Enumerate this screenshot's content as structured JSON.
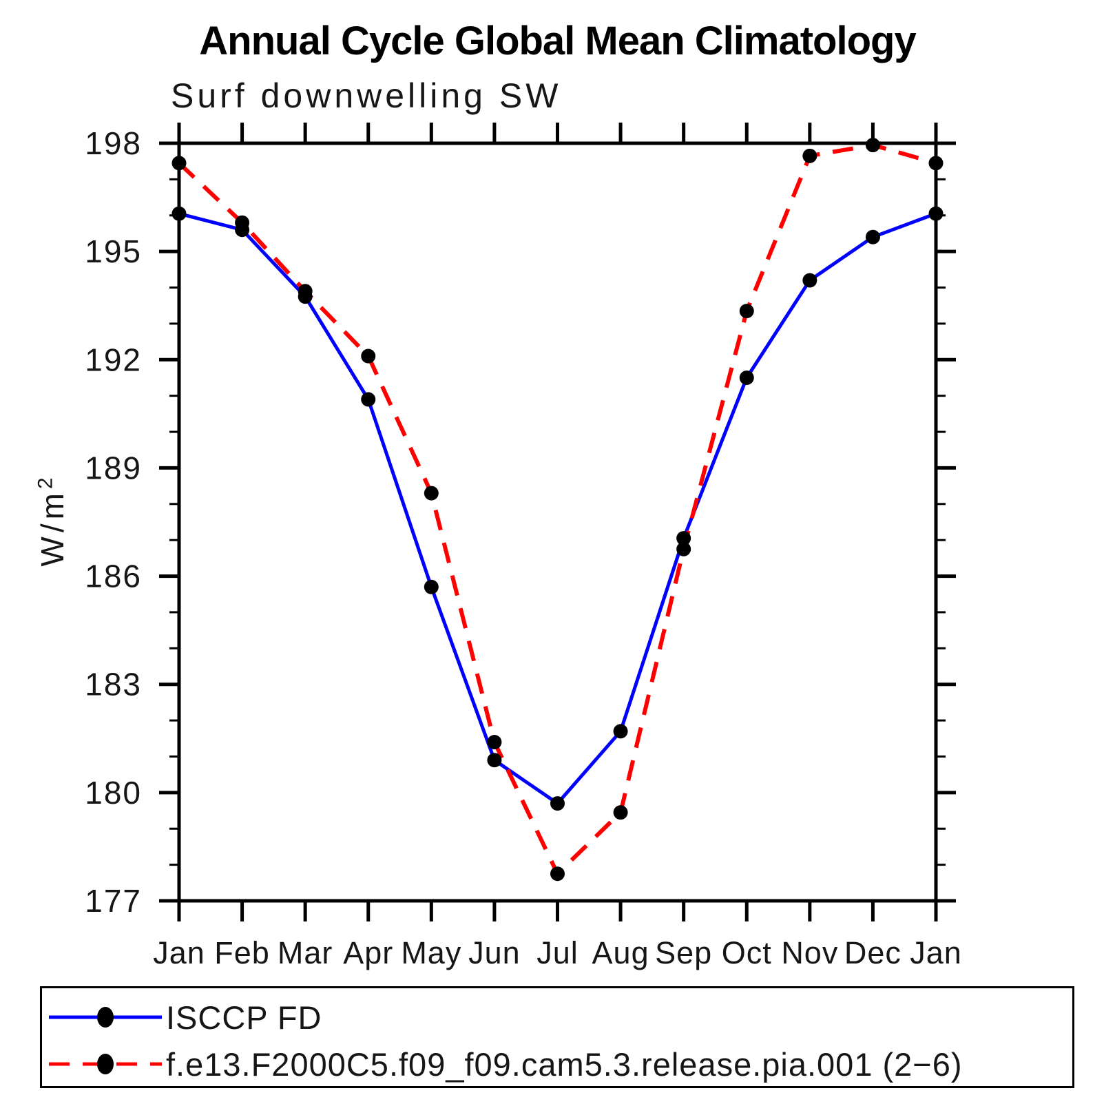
{
  "title": "Annual Cycle Global Mean Climatology",
  "subtitle": "Surf downwelling SW",
  "ylabel": {
    "base": "W/m",
    "exponent": "2"
  },
  "chart_data": {
    "type": "line",
    "title": "Annual Cycle Global Mean Climatology",
    "subtitle": "Surf downwelling SW",
    "ylabel": "W/m^2",
    "categories": [
      "Jan",
      "Feb",
      "Mar",
      "Apr",
      "May",
      "Jun",
      "Jul",
      "Aug",
      "Sep",
      "Oct",
      "Nov",
      "Dec",
      "Jan"
    ],
    "ylim": [
      177,
      198
    ],
    "y_major_ticks": [
      177,
      180,
      183,
      186,
      189,
      192,
      195,
      198
    ],
    "y_minor_step": 1,
    "grid": false,
    "legend_position": "bottom",
    "marker": {
      "shape": "filled-circle",
      "color": "#000000"
    },
    "series": [
      {
        "name": "ISCCP FD",
        "color": "#0000ff",
        "style": "solid",
        "values": [
          196.05,
          195.6,
          193.75,
          190.9,
          185.7,
          180.9,
          179.7,
          181.7,
          187.05,
          191.5,
          194.2,
          195.4,
          196.05
        ]
      },
      {
        "name": "f.e13.F2000C5.f09_f09.cam5.3.release.pia.001 (2−6)",
        "color": "#ff0000",
        "style": "dashed",
        "values": [
          197.45,
          195.8,
          193.9,
          192.1,
          188.3,
          181.4,
          177.75,
          179.45,
          186.75,
          193.35,
          197.65,
          197.95,
          197.45
        ]
      }
    ]
  }
}
